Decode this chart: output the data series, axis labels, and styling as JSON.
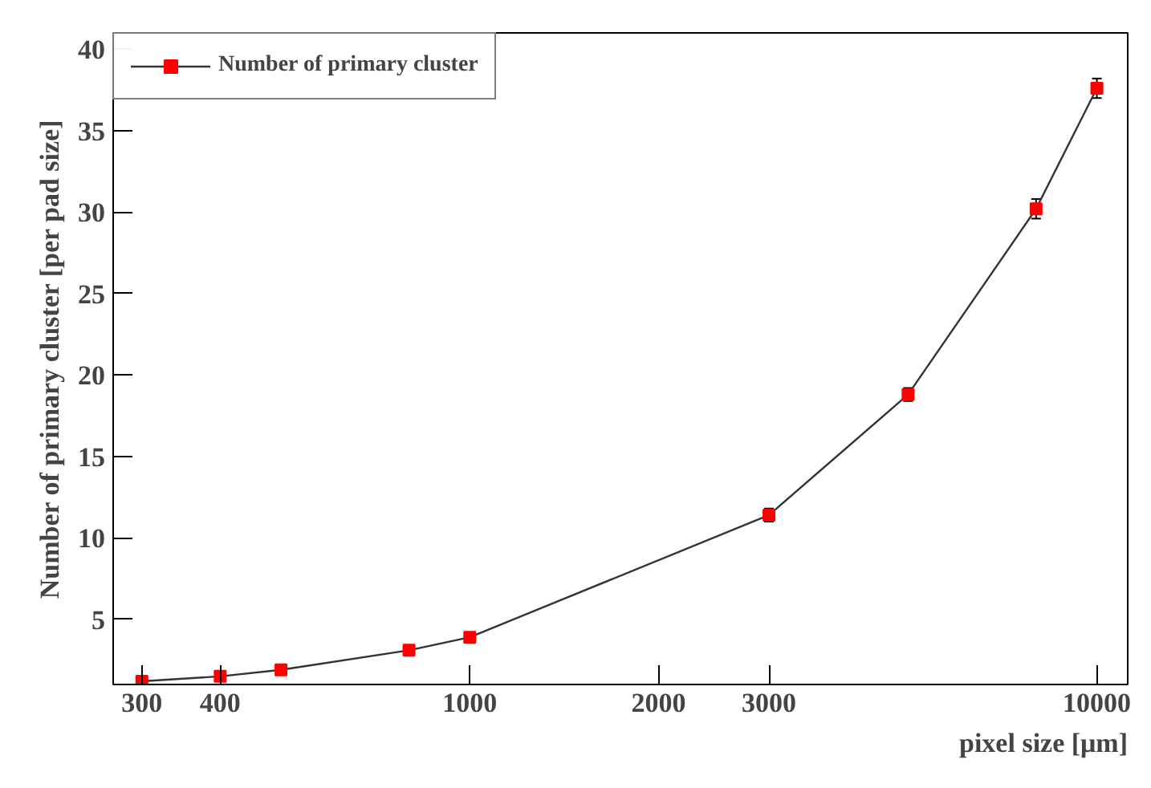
{
  "chart_data": {
    "type": "line",
    "xlabel": "pixel size [μm]",
    "ylabel": "Number of primary cluster [per pad size]",
    "x": [
      300,
      400,
      500,
      800,
      1000,
      3000,
      5000,
      8000,
      10000
    ],
    "series": [
      {
        "name": "Number of primary cluster",
        "color": "#ff0000",
        "values": [
          1.2,
          1.5,
          1.9,
          3.1,
          3.9,
          11.4,
          18.8,
          30.2,
          37.6
        ],
        "errors": [
          null,
          null,
          null,
          null,
          null,
          0.4,
          0.4,
          0.6,
          0.6
        ]
      }
    ],
    "log": "x",
    "xlim": [
      270,
      11200
    ],
    "ylim": [
      1,
      41
    ],
    "xticks": [
      300,
      400,
      1000,
      2000,
      3000,
      10000
    ],
    "yticks": [
      5,
      10,
      15,
      20,
      25,
      30,
      35,
      40
    ],
    "grid": false,
    "legend": "top left",
    "marker": "square",
    "line_style": "solid"
  }
}
